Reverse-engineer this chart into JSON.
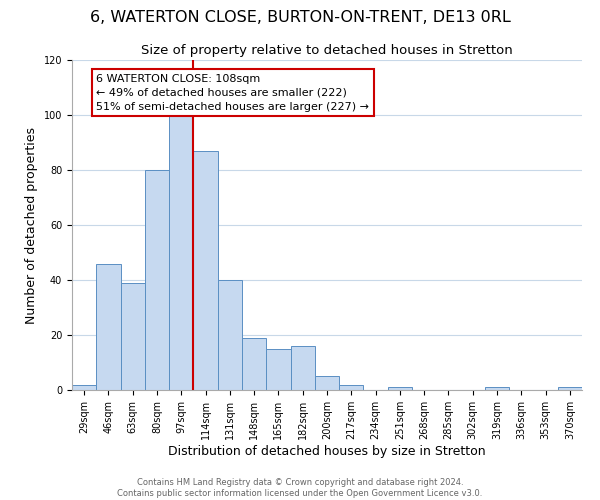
{
  "title": "6, WATERTON CLOSE, BURTON-ON-TRENT, DE13 0RL",
  "subtitle": "Size of property relative to detached houses in Stretton",
  "xlabel": "Distribution of detached houses by size in Stretton",
  "ylabel": "Number of detached properties",
  "bar_labels": [
    "29sqm",
    "46sqm",
    "63sqm",
    "80sqm",
    "97sqm",
    "114sqm",
    "131sqm",
    "148sqm",
    "165sqm",
    "182sqm",
    "200sqm",
    "217sqm",
    "234sqm",
    "251sqm",
    "268sqm",
    "285sqm",
    "302sqm",
    "319sqm",
    "336sqm",
    "353sqm",
    "370sqm"
  ],
  "bar_values": [
    2,
    46,
    39,
    80,
    100,
    87,
    40,
    19,
    15,
    16,
    5,
    2,
    0,
    1,
    0,
    0,
    0,
    1,
    0,
    0,
    1
  ],
  "bar_color": "#c6d9f0",
  "bar_edge_color": "#5a8fc3",
  "vline_x_index": 5,
  "vline_color": "#cc0000",
  "annotation_title": "6 WATERTON CLOSE: 108sqm",
  "annotation_line1": "← 49% of detached houses are smaller (222)",
  "annotation_line2": "51% of semi-detached houses are larger (227) →",
  "annotation_box_color": "#ffffff",
  "annotation_box_edge": "#cc0000",
  "ylim": [
    0,
    120
  ],
  "yticks": [
    0,
    20,
    40,
    60,
    80,
    100,
    120
  ],
  "footer_line1": "Contains HM Land Registry data © Crown copyright and database right 2024.",
  "footer_line2": "Contains public sector information licensed under the Open Government Licence v3.0.",
  "bg_color": "#ffffff",
  "grid_color": "#c8d8e8",
  "title_fontsize": 11.5,
  "subtitle_fontsize": 9.5,
  "xlabel_fontsize": 9,
  "ylabel_fontsize": 9,
  "tick_fontsize": 7,
  "footer_fontsize": 6,
  "annotation_fontsize": 8
}
